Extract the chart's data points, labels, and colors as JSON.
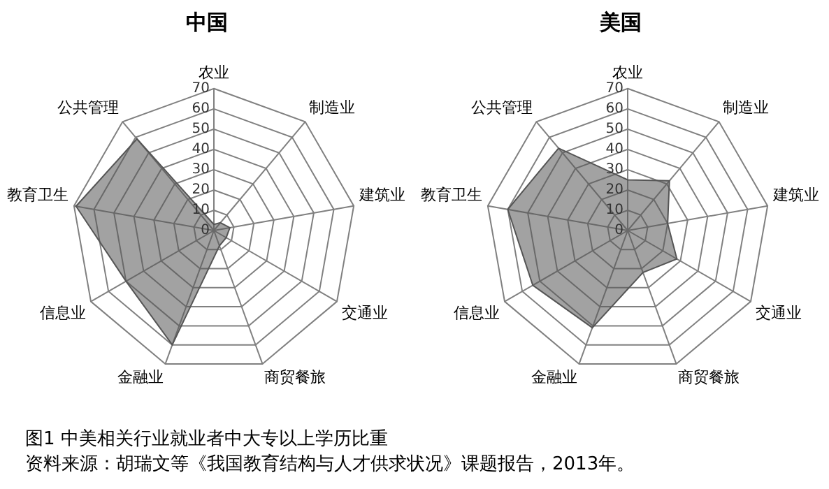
{
  "chart_data": [
    {
      "type": "radar",
      "title": "中国",
      "categories": [
        "农业",
        "制造业",
        "建筑业",
        "交通业",
        "商贸餐旅",
        "金融业",
        "信息业",
        "教育卫生",
        "公共管理"
      ],
      "series": [
        {
          "color": "#555555",
          "values": [
            3,
            5,
            8,
            7,
            8,
            60,
            50,
            69,
            59
          ]
        }
      ],
      "ylim": [
        0,
        70
      ],
      "yticks": [
        0,
        10,
        20,
        30,
        40,
        50,
        60,
        70
      ],
      "grid": true,
      "legend": false,
      "marker": "none",
      "annotations": [
        "图1 中美相关行业就业者中大专以上学历比重",
        "资料来源：胡瑞文等《我国教育结构与人才供求状况》课题报告，2013年。"
      ]
    },
    {
      "type": "radar",
      "title": "美国",
      "categories": [
        "农业",
        "制造业",
        "建筑业",
        "交通业",
        "商贸餐旅",
        "金融业",
        "信息业",
        "教育卫生",
        "公共管理"
      ],
      "series": [
        {
          "color": "#555555",
          "values": [
            25,
            32,
            20,
            28,
            22,
            51,
            54,
            60,
            53
          ]
        }
      ],
      "ylim": [
        0,
        70
      ],
      "yticks": [
        0,
        10,
        20,
        30,
        40,
        50,
        60,
        70
      ],
      "grid": true,
      "legend": false,
      "marker": "none"
    }
  ]
}
